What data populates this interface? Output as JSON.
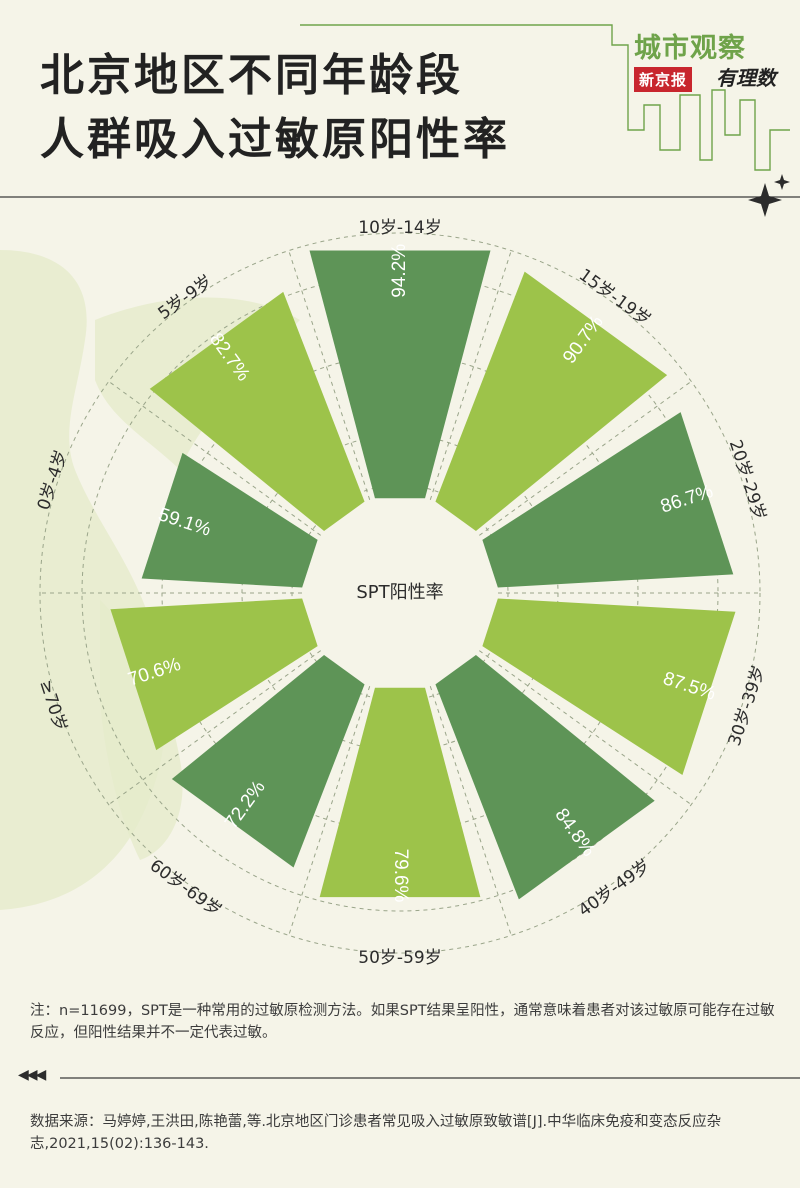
{
  "title_lines": [
    "北京地区不同年龄段",
    "人群吸入过敏原阳性率"
  ],
  "brand": {
    "main": "城市观察",
    "news": "新京报",
    "sub": "有理数"
  },
  "colors": {
    "dark_green": "#5e9457",
    "light_green": "#9dc34a",
    "accent": "#6fa34a",
    "background": "#f5f4e8"
  },
  "chart_data": {
    "type": "bar",
    "center_label": "SPT阳性率",
    "categories": [
      "10岁-14岁",
      "15岁-19岁",
      "20岁-29岁",
      "30岁-39岁",
      "40岁-49岁",
      "50岁-59岁",
      "60岁-69岁",
      "≥70岁",
      "0岁-4岁",
      "5岁-9岁"
    ],
    "values": [
      94.2,
      90.7,
      86.7,
      87.5,
      84.8,
      79.6,
      72.2,
      70.6,
      59.1,
      82.7
    ],
    "value_labels": [
      "94.2%",
      "90.7%",
      "86.7%",
      "87.5%",
      "84.8%",
      "79.6%",
      "72.2%",
      "70.6%",
      "59.1%",
      "82.7%"
    ],
    "bar_colors": [
      "dark",
      "light",
      "dark",
      "light",
      "dark",
      "light",
      "dark",
      "light",
      "dark",
      "light"
    ]
  },
  "note": "注：n=11699，SPT是一种常用的过敏原检测方法。如果SPT结果呈阳性，通常意味着患者对该过敏原可能存在过敏反应，但阳性结果并不一定代表过敏。",
  "source": "数据来源：马婷婷,王洪田,陈艳蕾,等.北京地区门诊患者常见吸入过敏原致敏谱[J].中华临床免疫和变态反应杂志,2021,15(02):136-143.",
  "arrows": "◀◀◀"
}
